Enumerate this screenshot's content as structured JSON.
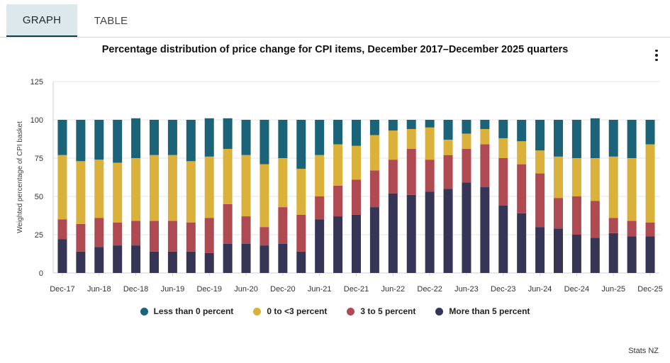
{
  "tabs": [
    {
      "label": "GRAPH",
      "active": true
    },
    {
      "label": "TABLE",
      "active": false
    }
  ],
  "menu_icon": "vertical-ellipsis-icon",
  "credit": "Stats NZ",
  "chart_data": {
    "type": "bar",
    "stacked": true,
    "title": "Percentage distribution of price change for CPI items, December 2017–December 2025 quarters",
    "xlabel": "",
    "ylabel": "Weighted percentage of CPI basket",
    "ylim": [
      0,
      125
    ],
    "yticks": [
      0,
      25,
      50,
      75,
      100,
      125
    ],
    "grid": true,
    "legend_position": "bottom",
    "categories": [
      "Dec-17",
      "Mar-18",
      "Jun-18",
      "Sep-18",
      "Dec-18",
      "Mar-19",
      "Jun-19",
      "Sep-19",
      "Dec-19",
      "Mar-20",
      "Jun-20",
      "Sep-20",
      "Dec-20",
      "Mar-21",
      "Jun-21",
      "Sep-21",
      "Dec-21",
      "Mar-22",
      "Jun-22",
      "Sep-22",
      "Dec-22",
      "Mar-23",
      "Jun-23",
      "Sep-23",
      "Dec-23",
      "Mar-24",
      "Jun-24",
      "Sep-24",
      "Dec-24",
      "Mar-25",
      "Jun-25",
      "Sep-25",
      "Dec-25"
    ],
    "tick_labels": [
      "Dec-17",
      "Jun-18",
      "Dec-18",
      "Jun-19",
      "Dec-19",
      "Jun-20",
      "Dec-20",
      "Jun-21",
      "Dec-21",
      "Jun-22",
      "Dec-22",
      "Jun-23",
      "Dec-23",
      "Jun-24",
      "Dec-24",
      "Jun-25",
      "Dec-25"
    ],
    "series": [
      {
        "name": "More than 5 percent",
        "color": "#363556",
        "values": [
          22,
          14,
          17,
          18,
          18,
          14,
          14,
          14,
          13,
          19,
          19,
          18,
          19,
          14,
          35,
          37,
          38,
          43,
          52,
          51,
          53,
          55,
          59,
          56,
          44,
          39,
          30,
          29,
          25,
          23,
          26,
          24,
          24
        ]
      },
      {
        "name": "3 to 5 percent",
        "color": "#b04a52",
        "values": [
          13,
          18,
          19,
          15,
          16,
          20,
          20,
          19,
          23,
          26,
          18,
          12,
          24,
          24,
          15,
          20,
          23,
          24,
          22,
          30,
          21,
          22,
          22,
          28,
          31,
          32,
          35,
          20,
          25,
          24,
          10,
          10,
          9
        ]
      },
      {
        "name": "0 to <3 percent",
        "color": "#d9b13b",
        "values": [
          42,
          41,
          38,
          39,
          41,
          43,
          43,
          40,
          40,
          36,
          40,
          41,
          32,
          30,
          27,
          27,
          22,
          23,
          19,
          13,
          21,
          10,
          10,
          10,
          13,
          15,
          15,
          27,
          25,
          28,
          40,
          41,
          51
        ]
      },
      {
        "name": "Less than 0 percent",
        "color": "#1a6378",
        "values": [
          23,
          27,
          26,
          28,
          26,
          23,
          23,
          27,
          25,
          20,
          23,
          29,
          25,
          32,
          23,
          16,
          17,
          10,
          7,
          6,
          5,
          13,
          9,
          6,
          12,
          14,
          20,
          24,
          25,
          26,
          24,
          25,
          16
        ]
      }
    ]
  }
}
